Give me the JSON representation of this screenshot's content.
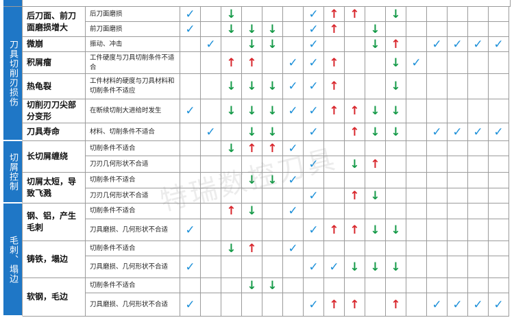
{
  "watermark": "特瑞数控刀具",
  "groups": [
    {
      "label": "刀具切削刃损伤",
      "rows": [
        {
          "cause": "后刀面、前刀面磨损增大",
          "details": [
            {
              "text": "后刀面磨损",
              "marks": [
                "✓",
                null,
                "↓",
                null,
                null,
                null,
                "✓",
                "↑",
                "↑",
                null,
                "↓",
                null,
                null,
                null,
                null,
                null
              ]
            },
            {
              "text": "前刀面磨损",
              "marks": [
                "✓",
                null,
                "↓",
                "↓",
                "↓",
                null,
                "✓",
                "↑",
                null,
                "↓",
                null,
                null,
                null,
                null,
                null,
                null
              ]
            }
          ]
        },
        {
          "cause": "微崩",
          "details": [
            {
              "text": "振动、冲击",
              "marks": [
                null,
                "✓",
                null,
                "↓",
                "↓",
                null,
                "✓",
                null,
                null,
                "↓",
                "↑",
                null,
                "✓",
                "✓",
                "✓",
                "✓"
              ]
            }
          ]
        },
        {
          "cause": "积屑瘤",
          "details": [
            {
              "text": "工件硬度与刀具切削条件不适合",
              "marks": [
                null,
                null,
                "↑",
                "↑",
                null,
                "✓",
                "✓",
                "↑",
                null,
                null,
                "↓",
                "✓",
                null,
                null,
                null,
                null
              ]
            }
          ]
        },
        {
          "cause": "热龟裂",
          "details": [
            {
              "text": "工件材料的硬度与刀具材料和切削条件不适应",
              "marks": [
                null,
                null,
                "↓",
                "↓",
                "↓",
                "✓",
                "✓",
                "↑",
                null,
                null,
                "↓",
                null,
                null,
                null,
                null,
                null
              ]
            }
          ]
        },
        {
          "cause": "切削刃刀尖部分变形",
          "details": [
            {
              "text": "在断续切削大进给时发生",
              "marks": [
                "✓",
                null,
                "↓",
                "↓",
                "↓",
                "✓",
                "✓",
                "↑",
                "↑",
                "↓",
                "↓",
                null,
                null,
                null,
                null,
                null
              ]
            }
          ]
        },
        {
          "cause": "刀具寿命",
          "details": [
            {
              "text": "材料、切削条件不适合",
              "marks": [
                null,
                "✓",
                null,
                "↓",
                "↓",
                null,
                "✓",
                null,
                "↑",
                "↓",
                "↓",
                null,
                "✓",
                "✓",
                "✓",
                "✓"
              ]
            }
          ]
        }
      ]
    },
    {
      "label": "切屑控制",
      "rows": [
        {
          "cause": "长切屑缠绕",
          "details": [
            {
              "text": "切削条件不适合",
              "marks": [
                null,
                null,
                "↓",
                "↑",
                "↑",
                "✓",
                null,
                null,
                null,
                null,
                null,
                null,
                null,
                null,
                null,
                null
              ]
            },
            {
              "text": "刀刃几何形状不合适",
              "marks": [
                null,
                null,
                null,
                null,
                null,
                null,
                "✓",
                null,
                "↓",
                "↑",
                null,
                null,
                null,
                null,
                null,
                null
              ]
            }
          ]
        },
        {
          "cause": "切屑太短，导致飞溅",
          "details": [
            {
              "text": "切削条件不适合",
              "marks": [
                null,
                null,
                null,
                "↓",
                "↓",
                "✓",
                null,
                null,
                null,
                null,
                null,
                null,
                null,
                null,
                null,
                null
              ]
            },
            {
              "text": "刀刃几何形状不合适",
              "marks": [
                null,
                null,
                null,
                null,
                null,
                null,
                "✓",
                null,
                "↑",
                "↓",
                null,
                null,
                null,
                null,
                null,
                null
              ]
            }
          ]
        }
      ]
    },
    {
      "label": "毛刺、塌边",
      "rows": [
        {
          "cause": "钢、铝，产生毛刺",
          "details": [
            {
              "text": "切削条件不适合",
              "marks": [
                null,
                null,
                "↑",
                "↓",
                null,
                "✓",
                null,
                null,
                null,
                null,
                null,
                null,
                null,
                null,
                null,
                null
              ]
            },
            {
              "text": "刀具磨损、几何形状不合适",
              "marks": [
                "✓",
                null,
                null,
                null,
                null,
                null,
                "✓",
                "↑",
                "↑",
                "↓",
                "↓",
                null,
                null,
                null,
                null,
                null
              ]
            }
          ]
        },
        {
          "cause": "铸铁，塌边",
          "details": [
            {
              "text": "切削条件不适合",
              "marks": [
                null,
                null,
                "↓",
                "↑",
                null,
                "✓",
                null,
                null,
                null,
                null,
                null,
                null,
                null,
                null,
                null,
                null
              ]
            },
            {
              "text": "刀具磨损、几何形状不合适",
              "marks": [
                "✓",
                null,
                null,
                null,
                null,
                null,
                "✓",
                "✓",
                "↓",
                "↓",
                "↓",
                null,
                null,
                null,
                null,
                null
              ]
            }
          ]
        },
        {
          "cause": "软钢，毛边",
          "details": [
            {
              "text": "切削条件不适合",
              "marks": [
                null,
                null,
                null,
                "↓",
                "↓",
                null,
                null,
                null,
                null,
                null,
                null,
                null,
                null,
                null,
                null,
                null
              ]
            },
            {
              "text": "刀具磨损、几何形状不合适",
              "marks": [
                "✓",
                null,
                null,
                null,
                null,
                null,
                "✓",
                "↑",
                "↑",
                null,
                "↑",
                null,
                "✓",
                "✓",
                "✓",
                "✓"
              ]
            }
          ]
        }
      ]
    }
  ]
}
